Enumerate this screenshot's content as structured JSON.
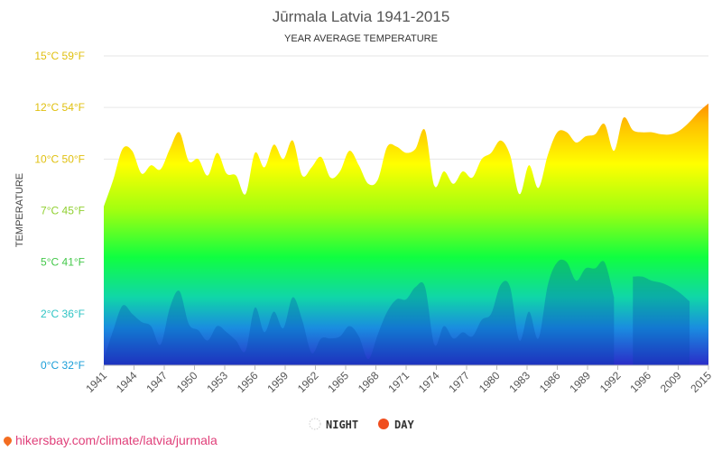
{
  "chart_data": {
    "type": "area",
    "title": "Jūrmala Latvia 1941-2015",
    "subtitle": "YEAR AVERAGE TEMPERATURE",
    "ylabel": "TEMPERATURE",
    "ylim": [
      0,
      15
    ],
    "y_tick_values": [
      0,
      2.5,
      5,
      7.5,
      10,
      12.5,
      15
    ],
    "y_tick_labels": [
      "0°C 32°F",
      "2°C 36°F",
      "5°C 41°F",
      "7°C 45°F",
      "10°C 50°F",
      "12°C 54°F",
      "15°C 59°F"
    ],
    "y_tick_colors": [
      "#1a9ed8",
      "#2ec4c4",
      "#44c84a",
      "#90d030",
      "#e0c010",
      "#e0c010",
      "#e0c010"
    ],
    "x_tick_labels": [
      "1941",
      "1944",
      "1947",
      "1950",
      "1953",
      "1956",
      "1959",
      "1962",
      "1965",
      "1968",
      "1971",
      "1974",
      "1977",
      "1980",
      "1983",
      "1986",
      "1989",
      "1992",
      "1996",
      "2009",
      "2015"
    ],
    "x": [
      "1941",
      "1942",
      "1943",
      "1944",
      "1945",
      "1946",
      "1947",
      "1948",
      "1949",
      "1950",
      "1951",
      "1952",
      "1953",
      "1954",
      "1955",
      "1956",
      "1957",
      "1958",
      "1959",
      "1960",
      "1961",
      "1962",
      "1963",
      "1964",
      "1965",
      "1966",
      "1967",
      "1968",
      "1969",
      "1970",
      "1971",
      "1972",
      "1973",
      "1974",
      "1975",
      "1976",
      "1977",
      "1978",
      "1979",
      "1980",
      "1981",
      "1982",
      "1983",
      "1984",
      "1985",
      "1986",
      "1987",
      "1988",
      "1989",
      "1990",
      "1991",
      "1992",
      "1993",
      "1994",
      "1995",
      "1996",
      "2007",
      "2008",
      "2009",
      "2010",
      "2011",
      "2012",
      "2013",
      "2014",
      "2015"
    ],
    "series": [
      {
        "name": "DAY",
        "color": "#f04e1e",
        "values": [
          7.7,
          9.0,
          10.5,
          10.4,
          9.3,
          9.7,
          9.5,
          10.5,
          11.3,
          9.9,
          10.0,
          9.2,
          10.3,
          9.3,
          9.2,
          8.3,
          10.3,
          9.6,
          10.7,
          10.0,
          10.9,
          9.2,
          9.6,
          10.1,
          9.1,
          9.4,
          10.4,
          9.7,
          8.8,
          9.0,
          10.6,
          10.6,
          10.3,
          10.5,
          11.4,
          8.7,
          9.4,
          8.8,
          9.4,
          9.1,
          10.0,
          10.3,
          10.9,
          10.2,
          8.3,
          9.7,
          8.6,
          10.2,
          11.3,
          11.3,
          10.8,
          11.1,
          11.2,
          11.7,
          10.4,
          12.0,
          11.4,
          11.3,
          11.3,
          11.2,
          11.2,
          11.4,
          11.8,
          12.3,
          12.7
        ]
      },
      {
        "name": "NIGHT",
        "color": "#e8e8e8",
        "values": [
          0.3,
          1.7,
          2.9,
          2.5,
          2.1,
          1.9,
          1.0,
          2.8,
          3.6,
          2.0,
          1.7,
          1.2,
          1.9,
          1.6,
          1.2,
          0.7,
          2.8,
          1.6,
          2.6,
          1.8,
          3.3,
          2.2,
          0.6,
          1.3,
          1.3,
          1.4,
          1.9,
          1.4,
          0.3,
          1.5,
          2.6,
          3.2,
          3.2,
          3.8,
          3.8,
          1.0,
          1.9,
          1.3,
          1.6,
          1.4,
          2.2,
          2.5,
          3.9,
          3.8,
          1.2,
          2.6,
          1.3,
          3.9,
          5.0,
          5.0,
          4.1,
          4.7,
          4.7,
          5.0,
          3.3,
          null,
          4.3,
          4.3,
          4.1,
          4.0,
          3.8,
          3.5,
          3.1,
          null,
          null
        ]
      }
    ],
    "grid": true,
    "legend_position": "bottom"
  },
  "legend": {
    "night_label": "NIGHT",
    "day_label": "DAY"
  },
  "source": {
    "text": "hikersbay.com/climate/latvia/jurmala"
  }
}
